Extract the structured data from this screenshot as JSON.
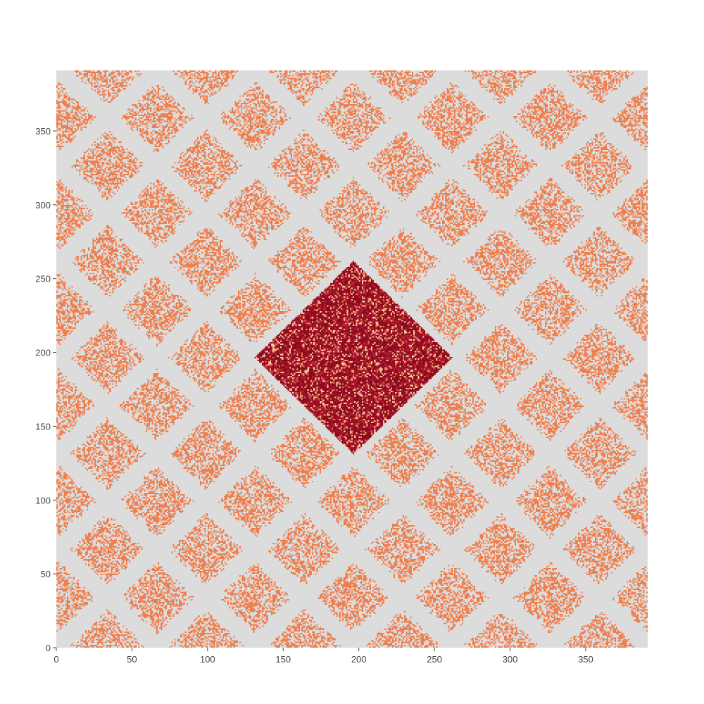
{
  "chart_data": {
    "type": "heatmap",
    "title": "",
    "xlabel": "",
    "ylabel": "",
    "xlim": [
      0,
      391
    ],
    "ylim": [
      0,
      391
    ],
    "grid_size": 391,
    "x_ticks": [
      0,
      50,
      100,
      150,
      200,
      250,
      300,
      350
    ],
    "y_ticks": [
      0,
      50,
      100,
      150,
      200,
      250,
      300,
      350
    ],
    "x_tick_labels": [
      "0",
      "50",
      "100",
      "150",
      "200",
      "250",
      "300",
      "350"
    ],
    "y_tick_labels": [
      "0",
      "50",
      "100",
      "150",
      "200",
      "250",
      "300",
      "350"
    ],
    "background_color": "#dcdcdc",
    "sparse_cell_color": "#ee8050",
    "sparse_cell_density": 0.5,
    "sparse_band_half_width": 8,
    "lattice": {
      "center": [
        196,
        196
      ],
      "half_diagonal": 65,
      "description": "diamond lattice of clear bands repeating every 65 units along diagonals"
    },
    "diamond_region": {
      "center": [
        196,
        196
      ],
      "half_diagonal": 65,
      "colors": [
        "#8b0a1e",
        "#a01628",
        "#c0203a",
        "#f6c8a0",
        "#e87a50"
      ],
      "weights": [
        0.45,
        0.2,
        0.15,
        0.12,
        0.08
      ]
    },
    "show_legend": false,
    "grid": false
  }
}
